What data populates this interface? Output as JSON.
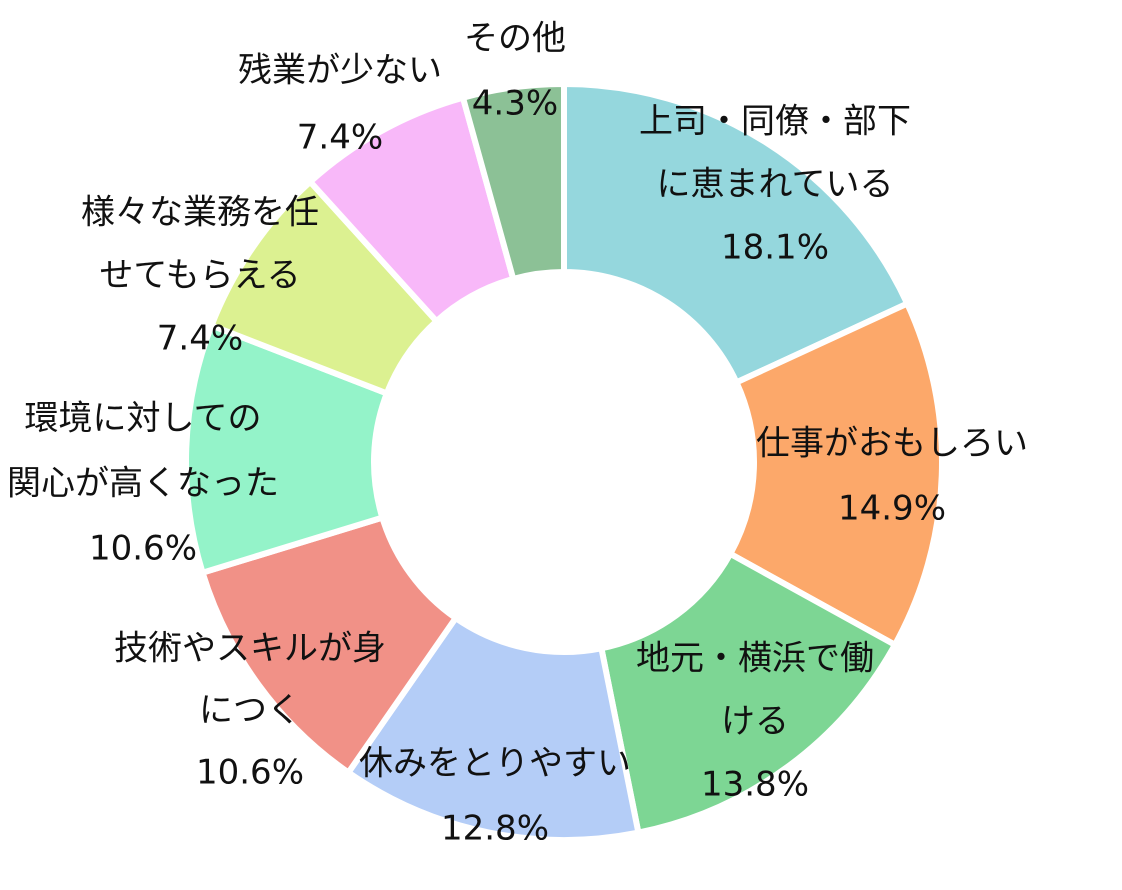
{
  "chart_data": {
    "type": "pie",
    "variant": "donut",
    "title": "",
    "unit": "%",
    "slices": [
      {
        "label_lines": [
          "上司・同僚・部下",
          "に恵まれている"
        ],
        "value": 18.1,
        "value_label": "18.1%",
        "color": "#95d7dd"
      },
      {
        "label_lines": [
          "仕事がおもしろい"
        ],
        "value": 14.9,
        "value_label": "14.9%",
        "color": "#fca86a"
      },
      {
        "label_lines": [
          "地元・横浜で働",
          "ける"
        ],
        "value": 13.8,
        "value_label": "13.8%",
        "color": "#7dd694"
      },
      {
        "label_lines": [
          "休みをとりやすい"
        ],
        "value": 12.8,
        "value_label": "12.8%",
        "color": "#b4cdf7"
      },
      {
        "label_lines": [
          "技術やスキルが身",
          "につく"
        ],
        "value": 10.6,
        "value_label": "10.6%",
        "color": "#f19187"
      },
      {
        "label_lines": [
          "環境に対しての",
          "関心が高くなった"
        ],
        "value": 10.6,
        "value_label": "10.6%",
        "color": "#94f3c9"
      },
      {
        "label_lines": [
          "様々な業務を任",
          "せてもらえる"
        ],
        "value": 7.4,
        "value_label": "7.4%",
        "color": "#dcf191"
      },
      {
        "label_lines": [
          "残業が少ない"
        ],
        "value": 7.4,
        "value_label": "7.4%",
        "color": "#f8b8f9"
      },
      {
        "label_lines": [
          "その他"
        ],
        "value": 4.3,
        "value_label": "4.3%",
        "color": "#8cc196"
      }
    ]
  }
}
